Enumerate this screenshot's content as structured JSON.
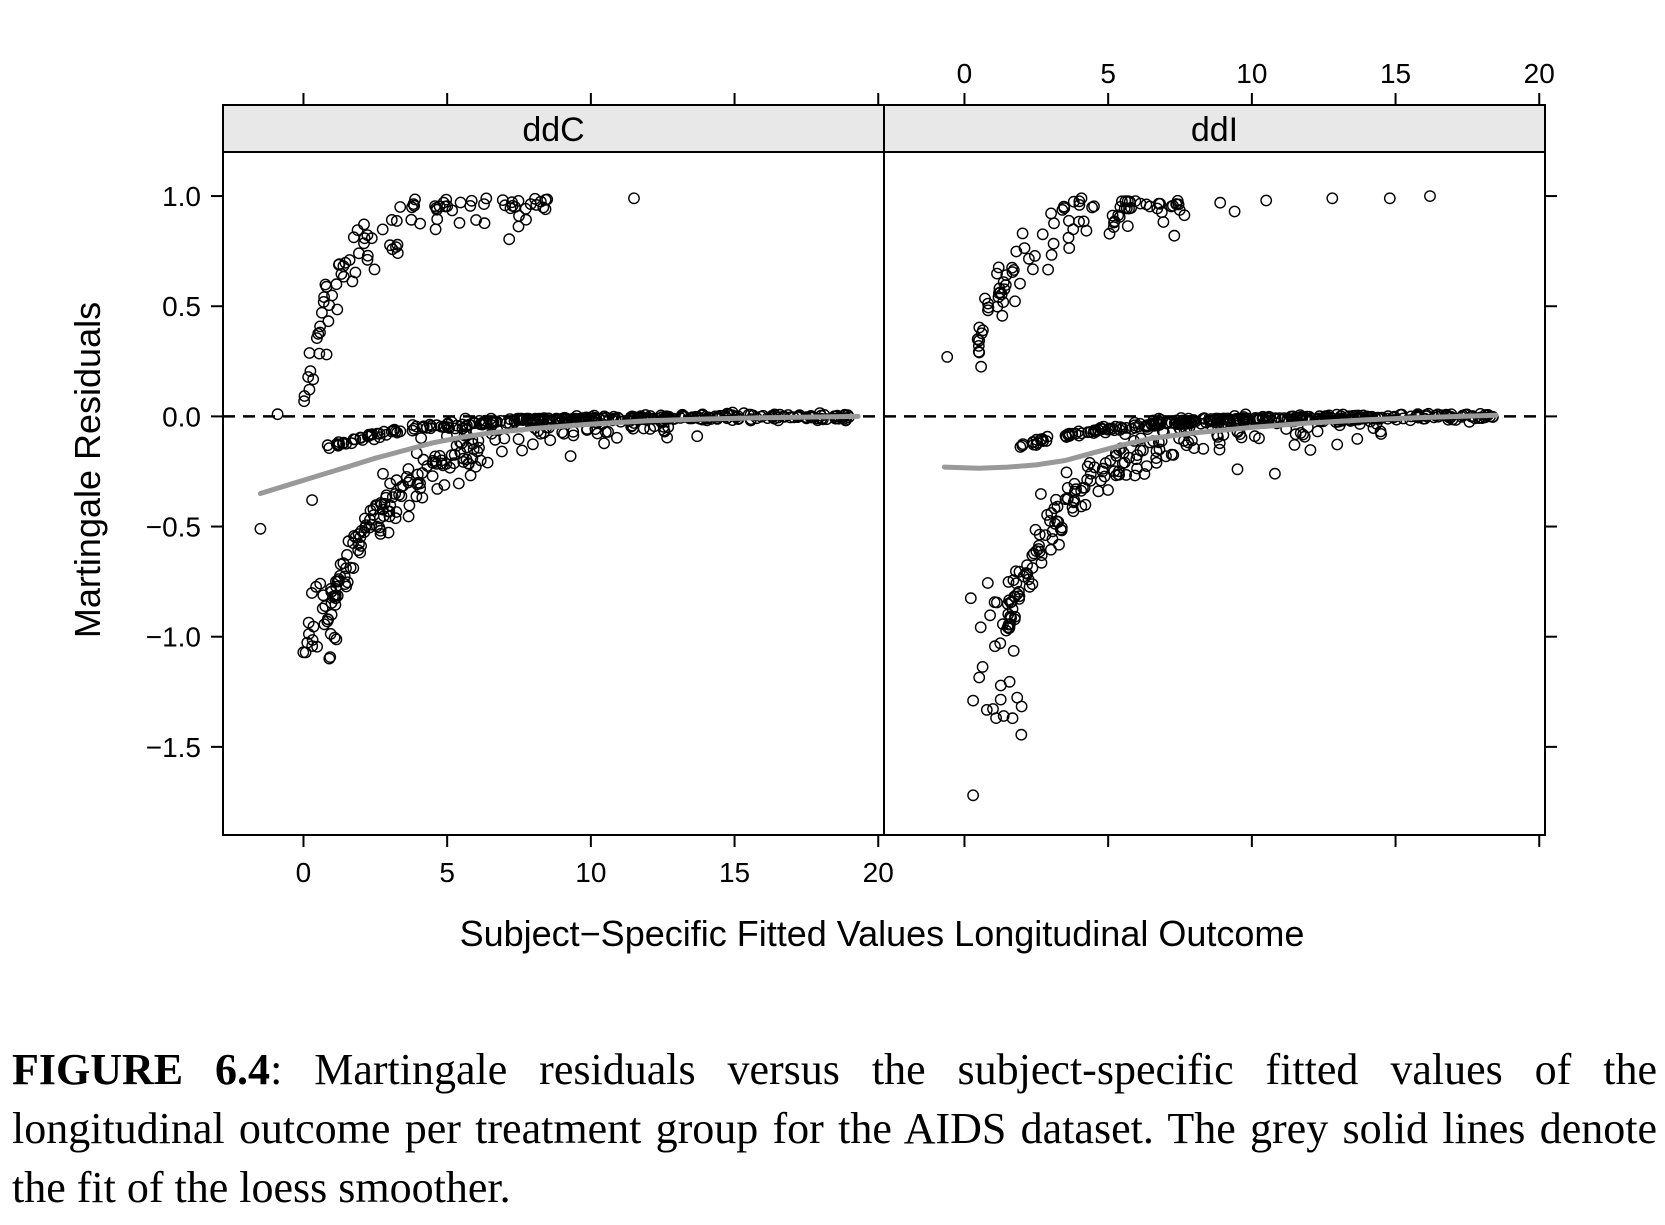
{
  "chart_data": {
    "type": "scatter",
    "xlabel": "Subject−Specific Fitted Values Longitudinal Outcome",
    "ylabel": "Martingale Residuals",
    "xlim": [
      -2.8,
      20.2
    ],
    "ylim": [
      -1.9,
      1.2
    ],
    "x_ticks": [
      0,
      5,
      10,
      15,
      20
    ],
    "y_ticks": [
      1.0,
      0.5,
      0.0,
      -0.5,
      -1.0,
      -1.5
    ],
    "y_tick_labels": [
      "1.0",
      "0.5",
      "0.0",
      "−0.5",
      "−1.0",
      "−1.5"
    ],
    "x_tick_labels": [
      "0",
      "5",
      "10",
      "15",
      "20"
    ],
    "reference_line": {
      "y": 0,
      "style": "dashed"
    },
    "smoother_color": "#999999",
    "panels": [
      {
        "strip": "ddC",
        "smoother": [
          [
            -1.5,
            -0.35
          ],
          [
            -0.5,
            -0.31
          ],
          [
            0.5,
            -0.27
          ],
          [
            1.5,
            -0.23
          ],
          [
            2.5,
            -0.19
          ],
          [
            3.5,
            -0.155
          ],
          [
            4.5,
            -0.12
          ],
          [
            5.5,
            -0.095
          ],
          [
            6.5,
            -0.075
          ],
          [
            8,
            -0.055
          ],
          [
            10,
            -0.035
          ],
          [
            12,
            -0.02
          ],
          [
            14,
            -0.012
          ],
          [
            16,
            -0.006
          ],
          [
            19.3,
            0.0
          ]
        ]
      },
      {
        "strip": "ddI",
        "smoother": [
          [
            -0.7,
            -0.23
          ],
          [
            0.5,
            -0.235
          ],
          [
            1.5,
            -0.23
          ],
          [
            2.5,
            -0.22
          ],
          [
            3.5,
            -0.2
          ],
          [
            4.5,
            -0.165
          ],
          [
            5.5,
            -0.13
          ],
          [
            6.5,
            -0.1
          ],
          [
            8,
            -0.075
          ],
          [
            10,
            -0.05
          ],
          [
            12,
            -0.03
          ],
          [
            14,
            -0.015
          ],
          [
            16,
            -0.005
          ],
          [
            18.5,
            0.005
          ]
        ]
      }
    ]
  },
  "caption": {
    "label": "FIGURE 6.4",
    "text": ": Martingale residuals versus the subject-specific fitted values of the longitudinal outcome per treatment group for the AIDS dataset. The grey solid lines denote the fit of the loess smoother."
  }
}
